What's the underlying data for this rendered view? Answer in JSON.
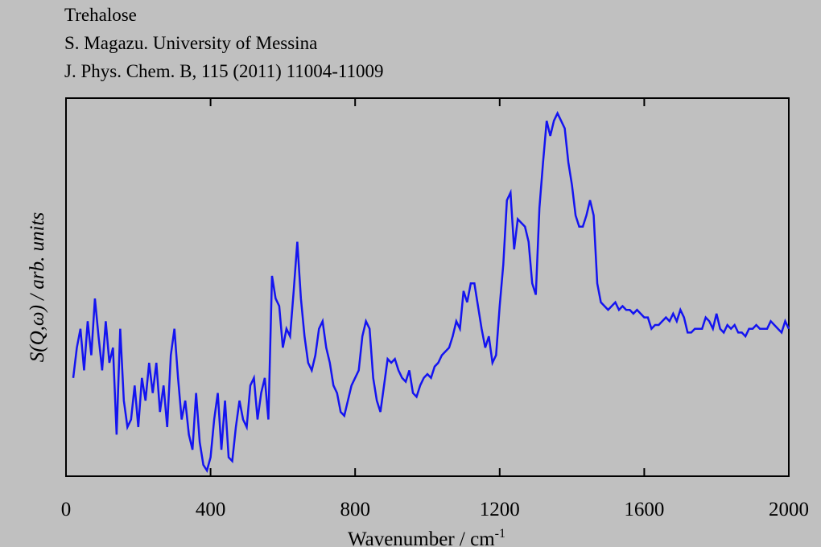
{
  "chart_data": {
    "type": "line",
    "title_lines": [
      "Trehalose",
      "S. Magazu. University of Messina",
      "J. Phys. Chem. B, 115 (2011) 11004-11009"
    ],
    "xlabel": "Wavenumber / cm",
    "xlabel_sup": "-1",
    "ylabel": "S(Q,ω) / arb. units",
    "xlim": [
      0,
      2000
    ],
    "xticks": [
      0,
      400,
      800,
      1200,
      1600,
      2000
    ],
    "ylim": [
      0,
      100
    ],
    "series": [
      {
        "color": "#1414f0",
        "x": [
          20,
          30,
          40,
          50,
          60,
          70,
          80,
          90,
          100,
          110,
          120,
          130,
          140,
          150,
          160,
          170,
          180,
          190,
          200,
          210,
          220,
          230,
          240,
          250,
          260,
          270,
          280,
          290,
          300,
          310,
          320,
          330,
          340,
          350,
          360,
          370,
          380,
          390,
          400,
          410,
          420,
          430,
          440,
          450,
          460,
          470,
          480,
          490,
          500,
          510,
          520,
          530,
          540,
          550,
          560,
          570,
          580,
          590,
          600,
          610,
          620,
          630,
          640,
          650,
          660,
          670,
          680,
          690,
          700,
          710,
          720,
          730,
          740,
          750,
          760,
          770,
          780,
          790,
          800,
          810,
          820,
          830,
          840,
          850,
          860,
          870,
          880,
          890,
          900,
          910,
          920,
          930,
          940,
          950,
          960,
          970,
          980,
          990,
          1000,
          1010,
          1020,
          1030,
          1040,
          1050,
          1060,
          1070,
          1080,
          1090,
          1100,
          1110,
          1120,
          1130,
          1140,
          1150,
          1160,
          1170,
          1180,
          1190,
          1200,
          1210,
          1220,
          1230,
          1240,
          1250,
          1260,
          1270,
          1280,
          1290,
          1300,
          1310,
          1320,
          1330,
          1340,
          1350,
          1360,
          1370,
          1380,
          1390,
          1400,
          1410,
          1420,
          1430,
          1440,
          1450,
          1460,
          1470,
          1480,
          1490,
          1500,
          1510,
          1520,
          1530,
          1540,
          1550,
          1560,
          1570,
          1580,
          1590,
          1600,
          1610,
          1620,
          1630,
          1640,
          1650,
          1660,
          1670,
          1680,
          1690,
          1700,
          1710,
          1720,
          1730,
          1740,
          1750,
          1760,
          1770,
          1780,
          1790,
          1800,
          1810,
          1820,
          1830,
          1840,
          1850,
          1860,
          1870,
          1880,
          1890,
          1900,
          1910,
          1920,
          1930,
          1940,
          1950,
          1960,
          1970,
          1980,
          1990,
          2000
        ],
        "values": [
          26,
          34,
          39,
          28,
          41,
          32,
          47,
          37,
          28,
          41,
          30,
          34,
          11,
          39,
          20,
          13,
          15,
          24,
          13,
          26,
          20,
          30,
          22,
          30,
          17,
          24,
          13,
          32,
          39,
          26,
          15,
          20,
          11,
          7,
          22,
          9,
          3,
          1.5,
          5,
          15,
          22,
          7,
          20,
          5,
          4,
          13,
          20,
          15,
          13,
          24,
          26,
          15,
          22,
          26,
          15,
          53,
          47,
          45,
          34,
          39,
          37,
          49,
          62,
          47,
          37,
          30,
          28,
          32,
          39,
          41,
          34,
          30,
          24,
          22,
          17,
          16,
          20,
          24,
          26,
          28,
          37,
          41,
          39,
          26,
          20,
          17,
          24,
          31,
          30,
          31,
          28,
          26,
          25,
          28,
          22,
          21,
          24,
          26,
          27,
          26,
          29,
          30,
          32,
          33,
          34,
          37,
          41,
          39,
          49,
          46,
          51,
          51,
          45,
          39,
          34,
          37,
          30,
          32,
          45,
          56,
          73,
          75,
          60,
          68,
          67,
          66,
          62,
          51,
          48,
          71,
          83,
          94,
          90,
          94,
          96,
          94,
          92,
          83,
          77,
          69,
          66,
          66,
          69,
          73,
          69,
          51,
          46,
          45,
          44,
          45,
          46,
          44,
          45,
          44,
          44,
          43,
          44,
          43,
          42,
          42,
          39,
          40,
          40,
          41,
          42,
          41,
          43,
          41,
          44,
          42,
          38,
          38,
          39,
          39,
          39,
          42,
          41,
          39,
          43,
          39,
          38,
          40,
          39,
          40,
          38,
          38,
          37,
          39,
          39,
          40,
          39,
          39,
          39,
          41,
          40,
          39,
          38,
          41,
          39
        ]
      }
    ]
  }
}
